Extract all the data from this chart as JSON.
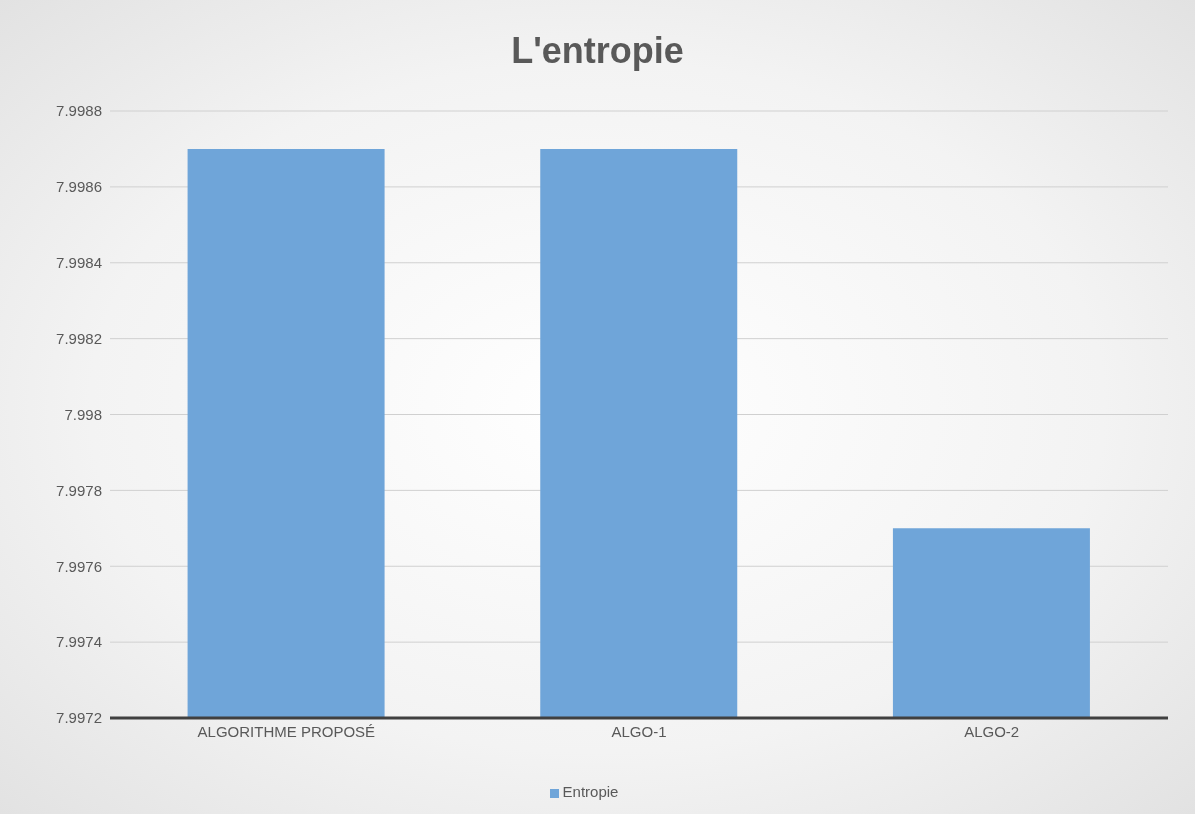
{
  "chart_data": {
    "type": "bar",
    "title": "L'entropie",
    "categories": [
      "ALGORITHME PROPOSÉ",
      "ALGO-1",
      "ALGO-2"
    ],
    "series": [
      {
        "name": "Entropie",
        "color": "#6fa5d9",
        "values": [
          7.9987,
          7.9987,
          7.9977
        ]
      }
    ],
    "ylim": [
      7.9972,
      7.9988
    ],
    "yticks": [
      7.9972,
      7.9974,
      7.9976,
      7.9978,
      7.998,
      7.9982,
      7.9984,
      7.9986,
      7.9988
    ],
    "grid": "y",
    "legend": "bottom"
  }
}
